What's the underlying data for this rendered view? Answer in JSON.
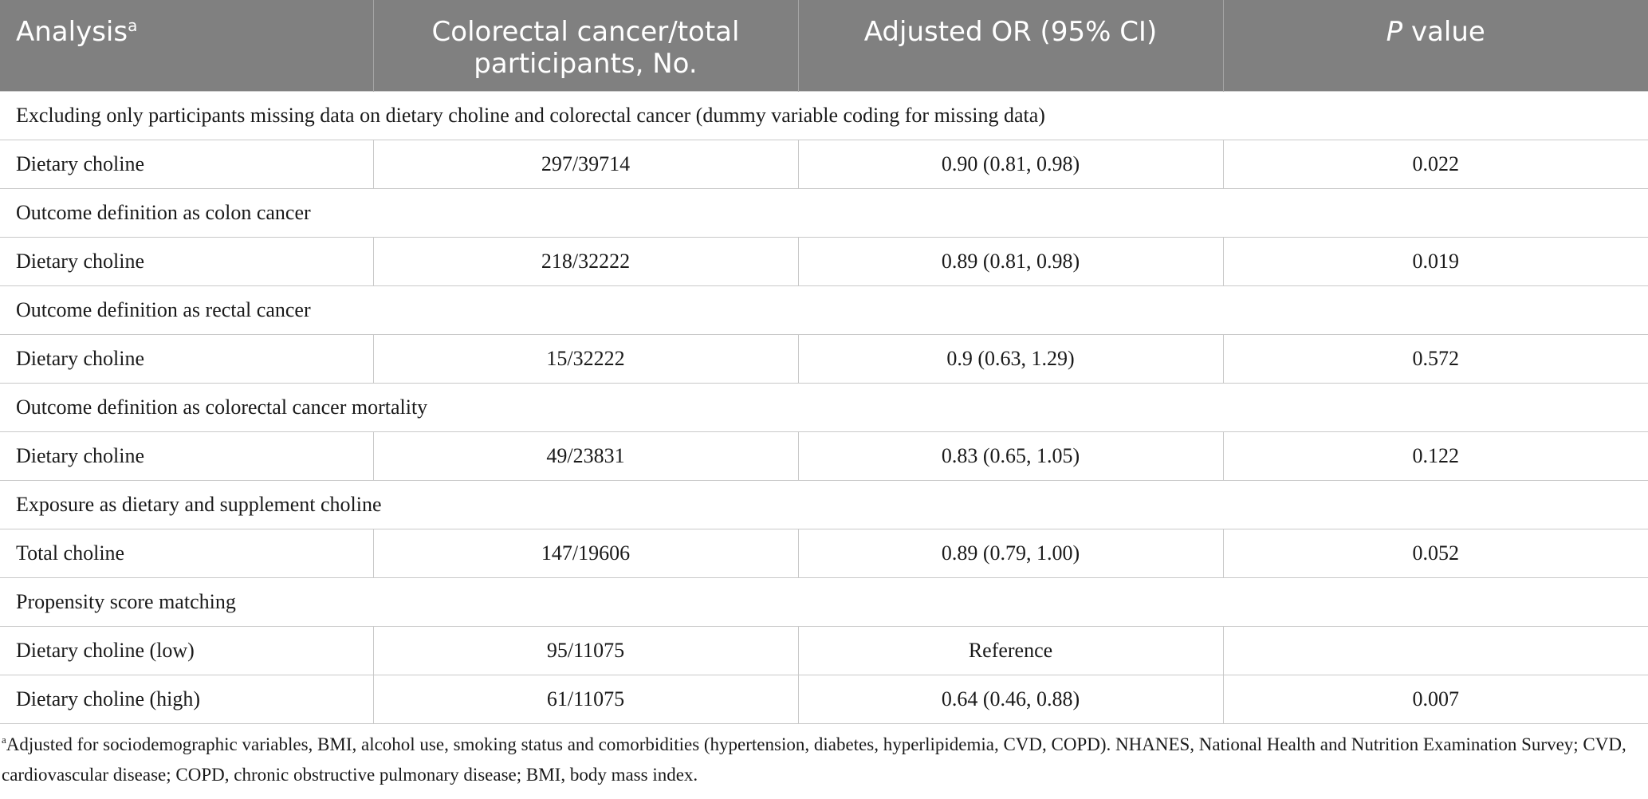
{
  "table": {
    "headers": {
      "analysis": "Analysis",
      "analysis_sup": "a",
      "cases_line1": "Colorectal cancer/total",
      "cases_line2": "participants, No.",
      "or": "Adjusted OR (95% CI)",
      "p_italic": "P",
      "p_rest": " value"
    },
    "rows": [
      {
        "section": "Excluding only participants missing data on dietary choline and colorectal cancer (dummy variable coding for missing data)"
      },
      {
        "label": "Dietary choline",
        "cases": "297/39714",
        "or": "0.90 (0.81, 0.98)",
        "p": "0.022"
      },
      {
        "section": "Outcome definition as colon cancer"
      },
      {
        "label": "Dietary choline",
        "cases": "218/32222",
        "or": "0.89 (0.81, 0.98)",
        "p": "0.019"
      },
      {
        "section": "Outcome definition as rectal cancer"
      },
      {
        "label": "Dietary choline",
        "cases": "15/32222",
        "or": "0.9 (0.63, 1.29)",
        "p": "0.572"
      },
      {
        "section": "Outcome definition as colorectal cancer mortality"
      },
      {
        "label": "Dietary choline",
        "cases": "49/23831",
        "or": "0.83 (0.65, 1.05)",
        "p": "0.122"
      },
      {
        "section": "Exposure as dietary and supplement choline"
      },
      {
        "label": "Total choline",
        "cases": "147/19606",
        "or": "0.89 (0.79, 1.00)",
        "p": "0.052"
      },
      {
        "section": "Propensity score matching"
      },
      {
        "label": "Dietary choline (low)",
        "cases": "95/11075",
        "or": "Reference",
        "p": ""
      },
      {
        "label": "Dietary choline (high)",
        "cases": "61/11075",
        "or": "0.64 (0.46, 0.88)",
        "p": "0.007"
      }
    ]
  },
  "footnote": {
    "marker": "a",
    "text": "Adjusted for sociodemographic variables, BMI, alcohol use, smoking status and comorbidities (hypertension, diabetes, hyperlipidemia, CVD, COPD). NHANES, National Health and Nutrition Examination Survey; CVD, cardiovascular disease; COPD, chronic obstructive pulmonary disease; BMI, body mass index."
  }
}
